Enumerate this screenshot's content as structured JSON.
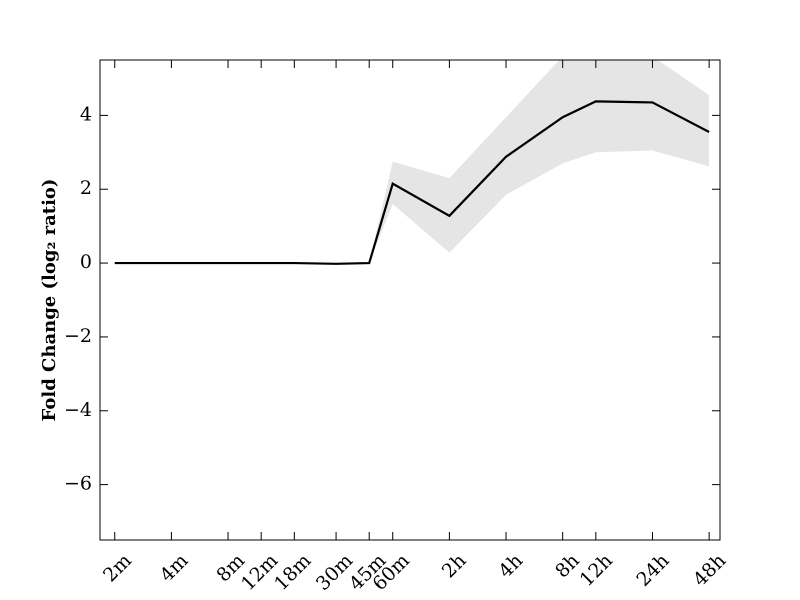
{
  "chart_data": {
    "type": "line",
    "ylabel": "Fold Change (log₂ ratio)",
    "xscale": "log",
    "x": [
      2,
      4,
      8,
      12,
      18,
      30,
      45,
      60,
      120,
      240,
      480,
      720,
      1440,
      2880
    ],
    "series": [
      {
        "color": "#000000",
        "values": [
          0,
          0,
          0,
          0,
          0,
          -0.02,
          0,
          2.15,
          1.28,
          2.88,
          3.95,
          4.38,
          4.35,
          3.55
        ]
      }
    ],
    "band": {
      "color": "#e5e5e5",
      "lower": [
        0,
        0,
        0,
        0,
        0,
        0,
        0,
        1.6,
        0.28,
        1.85,
        2.7,
        3.0,
        3.05,
        2.62
      ],
      "upper": [
        0,
        0,
        0,
        0,
        0,
        0,
        0,
        2.75,
        2.3,
        3.95,
        5.6,
        6.0,
        5.6,
        4.55
      ]
    },
    "xlim": [
      1.67,
      3290
    ],
    "ylim": [
      -7.5,
      5.5
    ],
    "yticks": [
      {
        "value": -6,
        "label": "−6"
      },
      {
        "value": -4,
        "label": "−4"
      },
      {
        "value": -2,
        "label": "−2"
      },
      0,
      2,
      4
    ],
    "xticks": [
      {
        "value": 2,
        "label": "2m"
      },
      {
        "value": 4,
        "label": "4m"
      },
      {
        "value": 8,
        "label": "8m"
      },
      {
        "value": 12,
        "label": "12m"
      },
      {
        "value": 18,
        "label": "18m"
      },
      {
        "value": 30,
        "label": "30m"
      },
      {
        "value": 45,
        "label": "45m"
      },
      {
        "value": 60,
        "label": "60m"
      },
      {
        "value": 120,
        "label": "2h"
      },
      {
        "value": 240,
        "label": "4h"
      },
      {
        "value": 480,
        "label": "8h"
      },
      {
        "value": 720,
        "label": "12h"
      },
      {
        "value": 1440,
        "label": "24h"
      },
      {
        "value": 2880,
        "label": "48h"
      }
    ]
  }
}
